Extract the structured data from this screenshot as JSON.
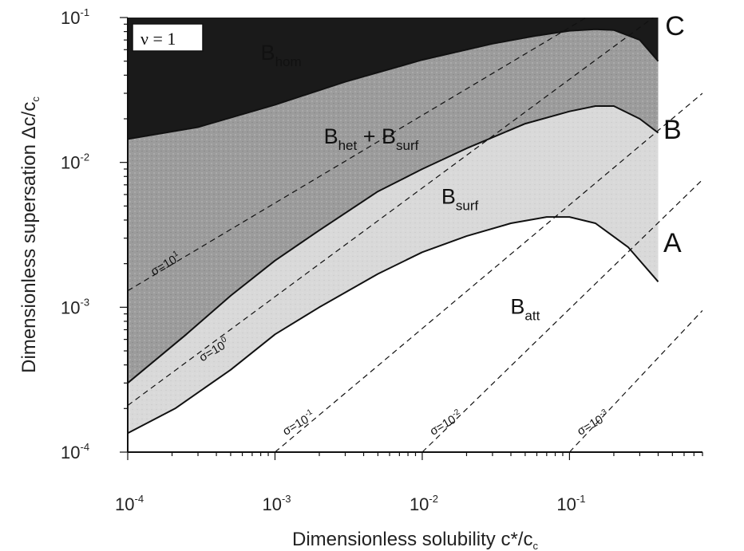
{
  "chart_data": {
    "type": "area",
    "xlabel": "Dimensionless solubility c*/c",
    "xlabel_sub": "c",
    "ylabel": "Dimensionless supersation Δc/c",
    "ylabel_sub": "c",
    "x_scale": "log",
    "y_scale": "log",
    "xlim": [
      0.0001,
      0.8
    ],
    "ylim": [
      0.0001,
      0.1
    ],
    "x_ticks": [
      {
        "value": 0.0001,
        "base": "10",
        "exp": "-4"
      },
      {
        "value": 0.001,
        "base": "10",
        "exp": "-3"
      },
      {
        "value": 0.01,
        "base": "10",
        "exp": "-2"
      },
      {
        "value": 0.1,
        "base": "10",
        "exp": "-1"
      }
    ],
    "y_ticks": [
      {
        "value": 0.0001,
        "base": "10",
        "exp": "-4"
      },
      {
        "value": 0.001,
        "base": "10",
        "exp": "-3"
      },
      {
        "value": 0.01,
        "base": "10",
        "exp": "-2"
      },
      {
        "value": 0.1,
        "base": "10",
        "exp": "-1"
      }
    ],
    "annotation": "ν = 1",
    "curves": [
      {
        "name": "A",
        "x": [
          0.0001,
          0.00021,
          0.0005,
          0.001,
          0.002,
          0.005,
          0.01,
          0.02,
          0.04,
          0.07,
          0.1,
          0.15,
          0.25,
          0.4
        ],
        "y": [
          0.000135,
          0.0002,
          0.00037,
          0.00065,
          0.001,
          0.0017,
          0.0024,
          0.0031,
          0.0038,
          0.0042,
          0.0042,
          0.0038,
          0.0026,
          0.0015
        ]
      },
      {
        "name": "B",
        "x": [
          0.0001,
          0.00025,
          0.0005,
          0.001,
          0.002,
          0.005,
          0.01,
          0.02,
          0.05,
          0.1,
          0.15,
          0.2,
          0.3,
          0.4
        ],
        "y": [
          0.0003,
          0.00065,
          0.0012,
          0.0021,
          0.0034,
          0.0063,
          0.009,
          0.0125,
          0.0185,
          0.0225,
          0.0245,
          0.0245,
          0.02,
          0.016
        ]
      },
      {
        "name": "C",
        "x": [
          0.0001,
          0.0003,
          0.001,
          0.003,
          0.01,
          0.03,
          0.06,
          0.1,
          0.15,
          0.2,
          0.3,
          0.4
        ],
        "y": [
          0.0145,
          0.0175,
          0.025,
          0.036,
          0.051,
          0.066,
          0.075,
          0.081,
          0.083,
          0.082,
          0.07,
          0.05
        ]
      }
    ],
    "regions": [
      {
        "label": "B",
        "sub": "hom",
        "x": 0.0011,
        "y": 0.051
      },
      {
        "label": "B",
        "sub": "het",
        "suffix_label": " + B",
        "suffix_sub": "surf",
        "x": 0.0045,
        "y": 0.0135
      },
      {
        "label": "B",
        "sub": "surf",
        "x": 0.018,
        "y": 0.0052
      },
      {
        "label": "B",
        "sub": "att",
        "x": 0.05,
        "y": 0.0009
      }
    ],
    "curve_labels": [
      {
        "text": "A",
        "x": 0.5,
        "y": 0.0028
      },
      {
        "text": "B",
        "x": 0.5,
        "y": 0.017
      },
      {
        "text": "C",
        "x": 0.52,
        "y": 0.088
      }
    ],
    "sigma_lines": [
      {
        "base": "σ=10",
        "exp": "1",
        "x": [
          0.0001,
          0.13
        ],
        "y": [
          0.0013,
          0.1
        ],
        "label_x": 0.00015,
        "label_y": 0.00165
      },
      {
        "base": "σ=10",
        "exp": "0",
        "x": [
          0.0001,
          0.37
        ],
        "y": [
          0.00021,
          0.1
        ],
        "label_x": 0.00032,
        "label_y": 0.00042
      },
      {
        "base": "σ=10",
        "exp": "-1",
        "x": [
          0.001,
          0.8
        ],
        "y": [
          0.0001,
          0.03
        ],
        "label_x": 0.00118,
        "label_y": 0.00013
      },
      {
        "base": "σ=10",
        "exp": "-2",
        "x": [
          0.01,
          0.8
        ],
        "y": [
          0.0001,
          0.0076
        ],
        "label_x": 0.0118,
        "label_y": 0.00013
      },
      {
        "base": "σ=10",
        "exp": "-3",
        "x": [
          0.1,
          0.8
        ],
        "y": [
          0.0001,
          0.00095
        ],
        "label_x": 0.118,
        "label_y": 0.00013
      }
    ],
    "colors": {
      "homogeneous_region": "#1a1a1a",
      "heterogeneous_region": "#9c9c9c",
      "surface_region": "#d9d9d9",
      "attrition_region": "#ffffff",
      "lines": "#111111"
    }
  }
}
